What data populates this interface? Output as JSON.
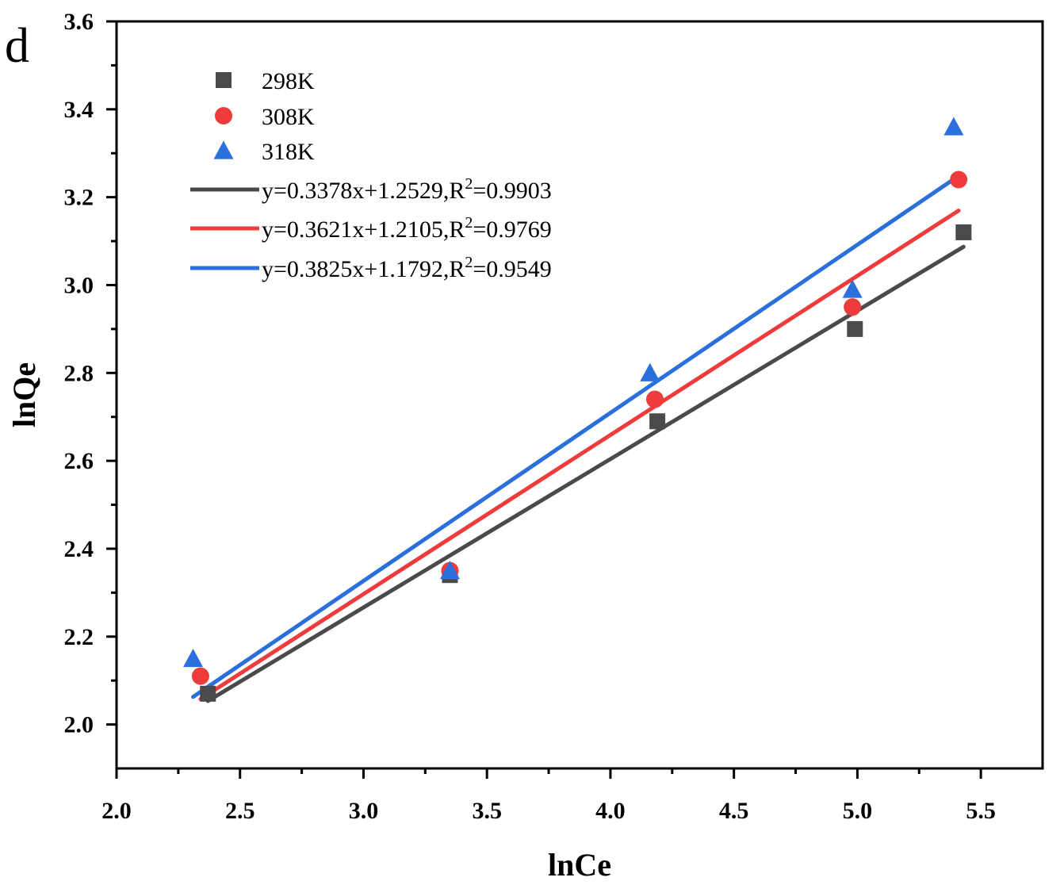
{
  "chart_data": {
    "type": "scatter",
    "panel_label": "d",
    "xlabel": "lnCe",
    "ylabel": "lnQe",
    "xlim": [
      2.0,
      5.75
    ],
    "ylim": [
      1.9,
      3.6
    ],
    "x_ticks": [
      2.0,
      2.5,
      3.0,
      3.5,
      4.0,
      4.5,
      5.0,
      5.5
    ],
    "x_tick_labels": [
      "2.0",
      "2.5",
      "3.0",
      "3.5",
      "4.0",
      "4.5",
      "5.0",
      "5.5"
    ],
    "y_ticks": [
      2.0,
      2.2,
      2.4,
      2.6,
      2.8,
      3.0,
      3.2,
      3.4,
      3.6
    ],
    "y_tick_labels": [
      "2.0",
      "2.2",
      "2.4",
      "2.6",
      "2.8",
      "3.0",
      "3.2",
      "3.4",
      "3.6"
    ],
    "grid": false,
    "legend_position": "top-left",
    "series": [
      {
        "name": "298K",
        "marker": "square",
        "color": "#4a4a4a",
        "x": [
          2.37,
          3.35,
          4.19,
          4.99,
          5.43
        ],
        "y": [
          2.07,
          2.34,
          2.69,
          2.9,
          3.12
        ]
      },
      {
        "name": "308K",
        "marker": "circle",
        "color": "#ee3b3b",
        "x": [
          2.34,
          3.35,
          4.18,
          4.98,
          5.41
        ],
        "y": [
          2.11,
          2.35,
          2.74,
          2.95,
          3.24
        ]
      },
      {
        "name": "318K",
        "marker": "triangle",
        "color": "#2a6fdb",
        "x": [
          2.31,
          3.35,
          4.16,
          4.98,
          5.39
        ],
        "y": [
          2.15,
          2.35,
          2.8,
          2.99,
          3.36
        ]
      }
    ],
    "fits": [
      {
        "label": "y=0.3378x+1.2529,R",
        "r2_label": "=0.9903",
        "color": "#4a4a4a",
        "slope": 0.3378,
        "intercept": 1.2529,
        "x_range": [
          2.37,
          5.43
        ]
      },
      {
        "label": "y=0.3621x+1.2105,R",
        "r2_label": "=0.9769",
        "color": "#ee3b3b",
        "slope": 0.3621,
        "intercept": 1.2105,
        "x_range": [
          2.34,
          5.41
        ]
      },
      {
        "label": "y=0.3825x+1.1792,R",
        "r2_label": "=0.9549",
        "color": "#2a6fdb",
        "slope": 0.3825,
        "intercept": 1.1792,
        "x_range": [
          2.31,
          5.39
        ]
      }
    ]
  }
}
